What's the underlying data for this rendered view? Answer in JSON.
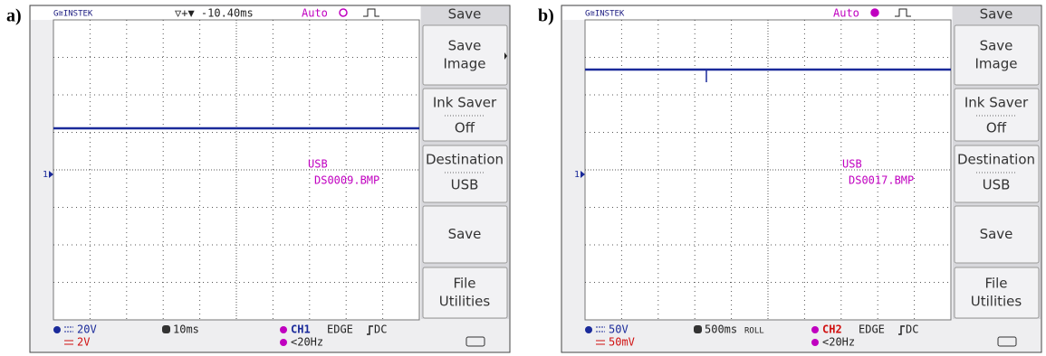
{
  "panels": [
    {
      "label": "a)",
      "brand": "G≅INSTEK",
      "delay": "▽+▼ -10.40ms",
      "mode": "Auto",
      "menu_title": "Save",
      "menu": [
        {
          "lines": [
            "Save",
            "Image"
          ]
        },
        {
          "title": "Ink Saver",
          "option": "Off"
        },
        {
          "title": "Destination",
          "option": "USB"
        },
        {
          "lines": [
            "Save"
          ]
        },
        {
          "lines": [
            "File",
            "Utilities"
          ]
        }
      ],
      "channel_marker": "1",
      "overlay": [
        "USB",
        "DS0009.BMP"
      ],
      "footer": {
        "ch1": "20V",
        "ch2": "2V",
        "timebase": "10ms",
        "source": "CH1",
        "trigger": "EDGE",
        "coupling": "DC",
        "freq": "<20Hz"
      },
      "source_color": "#1a2a9a"
    },
    {
      "label": "b)",
      "brand": "G≅INSTEK",
      "mode": "Auto",
      "menu_title": "Save",
      "menu": [
        {
          "lines": [
            "Save",
            "Image"
          ]
        },
        {
          "title": "Ink Saver",
          "option": "Off"
        },
        {
          "title": "Destination",
          "option": "USB"
        },
        {
          "lines": [
            "Save"
          ]
        },
        {
          "lines": [
            "File",
            "Utilities"
          ]
        }
      ],
      "channel_marker": "1",
      "overlay": [
        "USB",
        "DS0017.BMP"
      ],
      "footer": {
        "ch1": "50V",
        "ch2": "50mV",
        "timebase": "500ms",
        "roll": "ROLL",
        "source": "CH2",
        "trigger": "EDGE",
        "coupling": "DC",
        "freq": "<20Hz"
      },
      "source_color": "#d01010"
    }
  ]
}
